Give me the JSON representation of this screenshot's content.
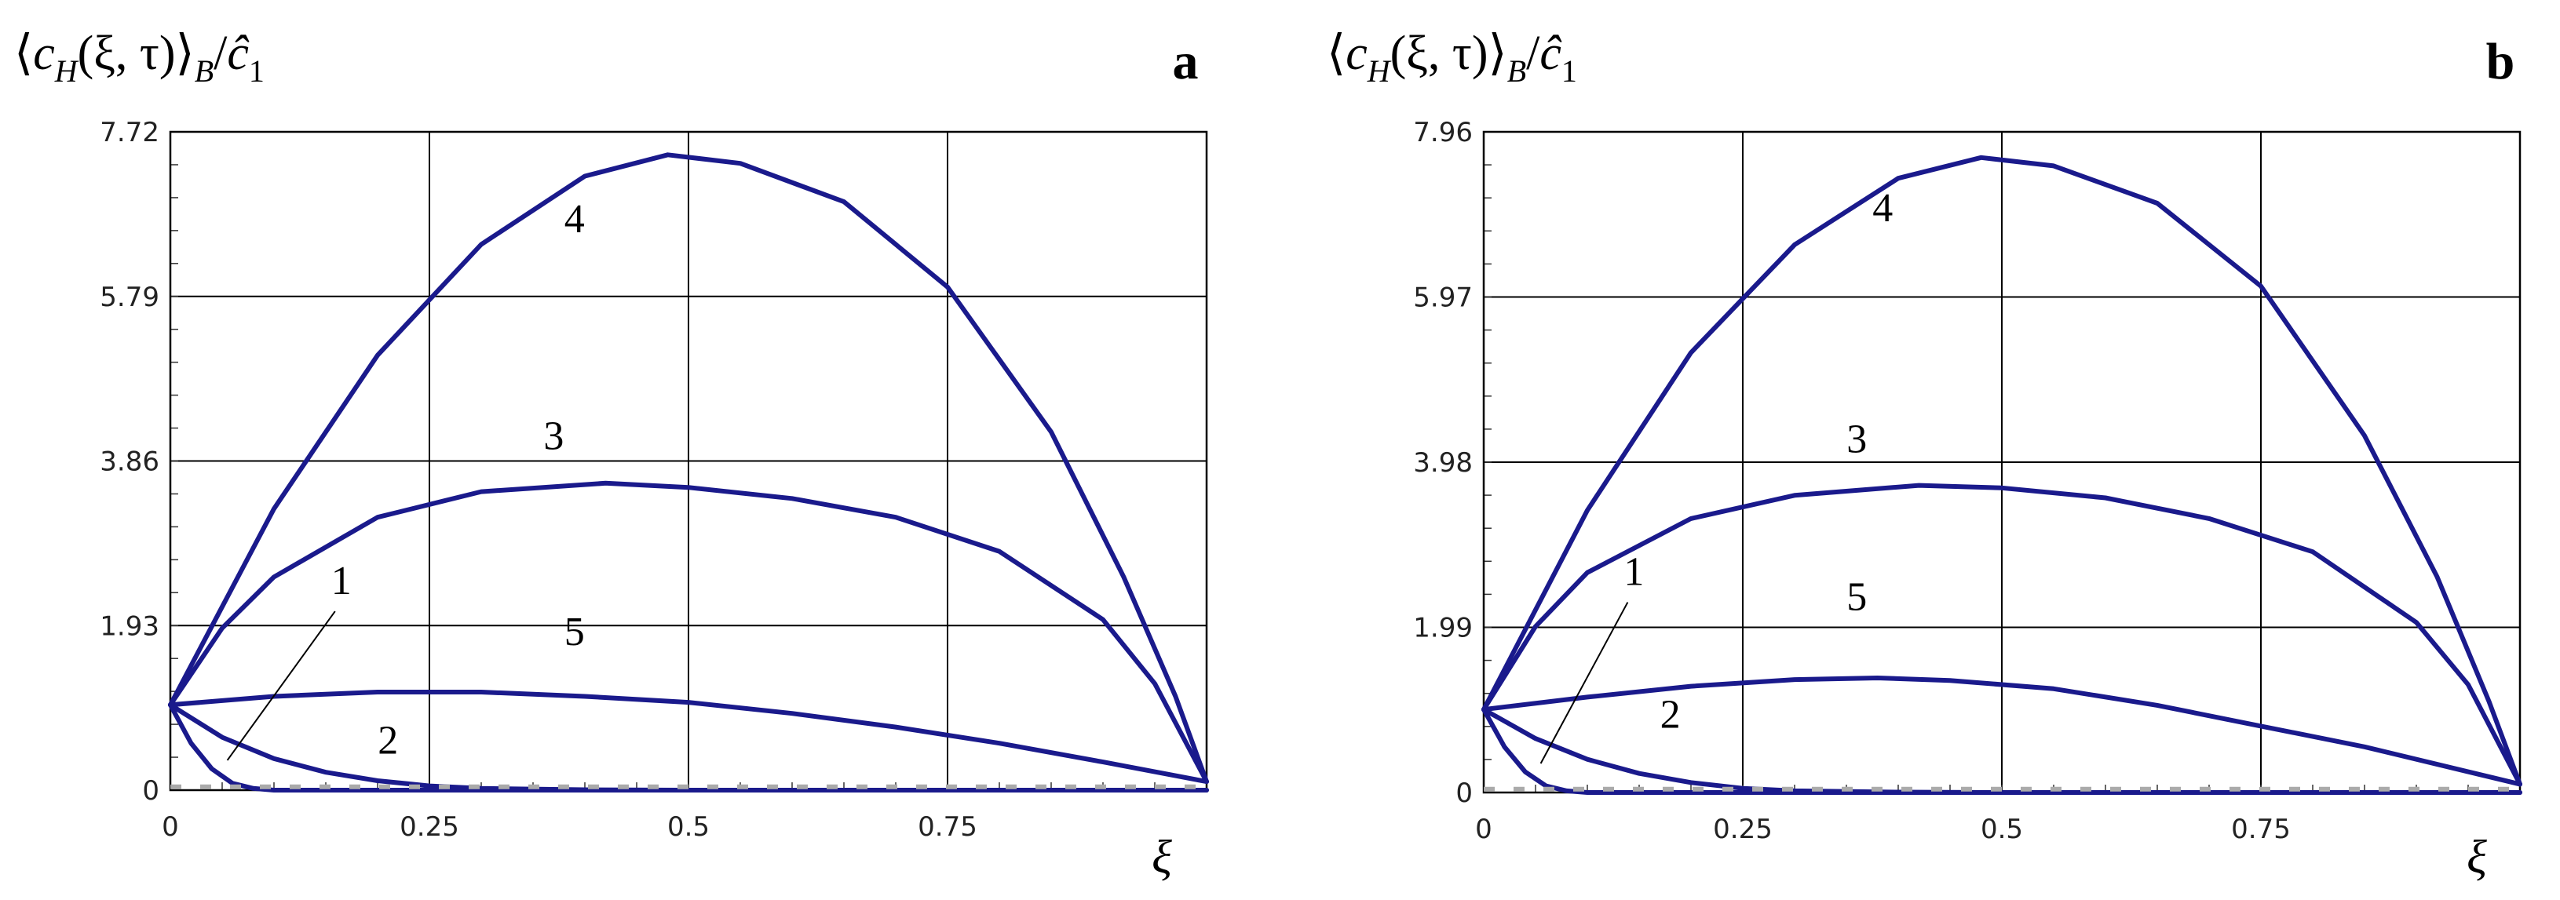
{
  "chart_data": [
    {
      "type": "line",
      "panel_label": "a",
      "ylabel": {
        "open": "⟨",
        "c": "c",
        "sub_H": "H",
        "args": "(ξ, τ)",
        "close": "⟩",
        "sub_B": "B",
        "slash": "/",
        "chat": "ĉ",
        "sub_1": "1"
      },
      "xlabel": "ξ",
      "xlim": [
        0,
        1
      ],
      "ylim": [
        0,
        7.72
      ],
      "x_ticks": [
        0,
        0.25,
        0.5,
        0.75
      ],
      "x_tick_labels": [
        "0",
        "0.25",
        "0.5",
        "0.75"
      ],
      "y_ticks": [
        0,
        1.93,
        3.86,
        5.79,
        7.72
      ],
      "y_tick_labels": [
        "0",
        "1.93",
        "3.86",
        "5.79",
        "7.72"
      ],
      "grid": true,
      "curve_color": "#1a1a8c",
      "series": [
        {
          "name": "1",
          "x": [
            0,
            0.02,
            0.04,
            0.06,
            0.08,
            0.1,
            1
          ],
          "y": [
            1.0,
            0.55,
            0.25,
            0.08,
            0.02,
            0,
            0
          ]
        },
        {
          "name": "2",
          "x": [
            0,
            0.05,
            0.1,
            0.15,
            0.2,
            0.25,
            0.3,
            0.4,
            0.5,
            1
          ],
          "y": [
            1.0,
            0.62,
            0.37,
            0.21,
            0.11,
            0.05,
            0.02,
            0.005,
            0,
            0
          ]
        },
        {
          "name": "3",
          "x": [
            0,
            0.05,
            0.1,
            0.2,
            0.3,
            0.42,
            0.5,
            0.6,
            0.7,
            0.8,
            0.9,
            0.95,
            1
          ],
          "y": [
            1.0,
            1.9,
            2.5,
            3.2,
            3.5,
            3.6,
            3.55,
            3.42,
            3.2,
            2.8,
            2.0,
            1.25,
            0.1
          ]
        },
        {
          "name": "4",
          "x": [
            0,
            0.05,
            0.1,
            0.2,
            0.3,
            0.4,
            0.48,
            0.55,
            0.65,
            0.75,
            0.85,
            0.92,
            0.97,
            1
          ],
          "y": [
            1.0,
            2.15,
            3.3,
            5.1,
            6.4,
            7.2,
            7.45,
            7.35,
            6.9,
            5.9,
            4.2,
            2.5,
            1.1,
            0.1
          ]
        },
        {
          "name": "5",
          "x": [
            0,
            0.1,
            0.2,
            0.3,
            0.4,
            0.5,
            0.6,
            0.7,
            0.8,
            0.9,
            1
          ],
          "y": [
            1.0,
            1.1,
            1.15,
            1.15,
            1.1,
            1.03,
            0.9,
            0.74,
            0.55,
            0.33,
            0.1
          ]
        },
        {
          "name": "baseline",
          "style": "dashed",
          "x": [
            0,
            1
          ],
          "y": [
            0.04,
            0.04
          ]
        }
      ],
      "curve_labels": [
        {
          "text": "1",
          "x": 0.33,
          "y": 2.3
        },
        {
          "text": "2",
          "x": 0.42,
          "y": 0.43
        },
        {
          "text": "3",
          "x": 0.74,
          "y": 4.0
        },
        {
          "text": "4",
          "x": 0.78,
          "y": 6.54
        },
        {
          "text": "5",
          "x": 0.78,
          "y": 1.7
        }
      ]
    },
    {
      "type": "line",
      "panel_label": "b",
      "ylabel": {
        "open": "⟨",
        "c": "c",
        "sub_H": "H",
        "args": "(ξ, τ)",
        "close": "⟩",
        "sub_B": "B",
        "slash": "/",
        "chat": "ĉ",
        "sub_1": "1"
      },
      "xlabel": "ξ",
      "xlim": [
        0,
        1
      ],
      "ylim": [
        0,
        7.96
      ],
      "x_ticks": [
        0,
        0.25,
        0.5,
        0.75
      ],
      "x_tick_labels": [
        "0",
        "0.25",
        "0.5",
        "0.75"
      ],
      "y_ticks": [
        0,
        1.99,
        3.98,
        5.97,
        7.96
      ],
      "y_tick_labels": [
        "0",
        "1.99",
        "3.98",
        "5.97",
        "7.96"
      ],
      "grid": true,
      "curve_color": "#1a1a8c",
      "series": [
        {
          "name": "1",
          "x": [
            0,
            0.02,
            0.04,
            0.06,
            0.08,
            0.1,
            1
          ],
          "y": [
            1.0,
            0.55,
            0.25,
            0.08,
            0.02,
            0,
            0
          ]
        },
        {
          "name": "2",
          "x": [
            0,
            0.05,
            0.1,
            0.15,
            0.2,
            0.25,
            0.3,
            0.4,
            0.5,
            1
          ],
          "y": [
            1.0,
            0.65,
            0.4,
            0.23,
            0.12,
            0.05,
            0.02,
            0.005,
            0,
            0
          ]
        },
        {
          "name": "3",
          "x": [
            0,
            0.05,
            0.1,
            0.2,
            0.3,
            0.42,
            0.5,
            0.6,
            0.7,
            0.8,
            0.9,
            0.95,
            1
          ],
          "y": [
            1.0,
            2.0,
            2.65,
            3.3,
            3.58,
            3.7,
            3.67,
            3.55,
            3.3,
            2.9,
            2.05,
            1.3,
            0.1
          ]
        },
        {
          "name": "4",
          "x": [
            0,
            0.05,
            0.1,
            0.2,
            0.3,
            0.4,
            0.48,
            0.55,
            0.65,
            0.75,
            0.85,
            0.92,
            0.97,
            1
          ],
          "y": [
            1.0,
            2.2,
            3.4,
            5.3,
            6.6,
            7.4,
            7.65,
            7.55,
            7.1,
            6.1,
            4.3,
            2.6,
            1.1,
            0.1
          ]
        },
        {
          "name": "5",
          "x": [
            0,
            0.1,
            0.2,
            0.3,
            0.38,
            0.45,
            0.55,
            0.65,
            0.75,
            0.85,
            0.95,
            1
          ],
          "y": [
            1.0,
            1.15,
            1.28,
            1.36,
            1.38,
            1.35,
            1.25,
            1.05,
            0.8,
            0.55,
            0.25,
            0.1
          ]
        },
        {
          "name": "baseline",
          "style": "dashed",
          "x": [
            0,
            1
          ],
          "y": [
            0.04,
            0.04
          ]
        }
      ],
      "curve_labels": [
        {
          "text": "1",
          "x": 0.29,
          "y": 2.5
        },
        {
          "text": "2",
          "x": 0.36,
          "y": 0.78
        },
        {
          "text": "3",
          "x": 0.72,
          "y": 4.1
        },
        {
          "text": "4",
          "x": 0.77,
          "y": 6.88
        },
        {
          "text": "5",
          "x": 0.72,
          "y": 2.2
        }
      ]
    }
  ]
}
